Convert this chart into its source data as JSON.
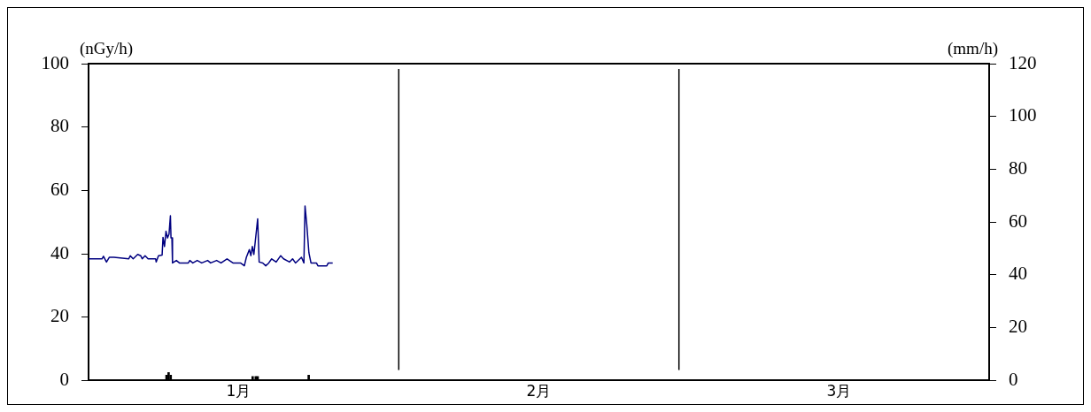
{
  "chart_data": {
    "type": "line",
    "xlim": [
      "--01-01",
      "--04-01"
    ],
    "xticks": [
      {
        "value": "--01-16",
        "label": "1月"
      },
      {
        "value": "--02-15",
        "label": "2月"
      },
      {
        "value": "--03-17",
        "label": "3月"
      }
    ],
    "ylim": [
      0,
      100
    ],
    "yticks": [
      0,
      20,
      40,
      60,
      80,
      100
    ],
    "y2lim": [
      0,
      120
    ],
    "y2ticks": [
      0,
      20,
      40,
      60,
      80,
      100,
      120
    ],
    "ylabel": "(nGy/h)",
    "y2label": "(mm/h)",
    "grid": false,
    "legend": false,
    "marker": "none",
    "line_style": "solid",
    "ref_lines": [
      {
        "axis": "x",
        "value": "--02-01",
        "color": "#000000"
      },
      {
        "axis": "x",
        "value": "--03-01",
        "color": "#000000"
      }
    ],
    "series": [
      {
        "color": "#000080",
        "x": [
          "--01-01T00:00",
          "--01-02T08:10",
          "--01-02T11:45",
          "--01-02T19:00",
          "--01-03T02:00",
          "--01-03T12:45",
          "--01-05T00:30",
          "--01-05T04:00",
          "--01-05T11:00",
          "--01-05T21:50",
          "--01-06T05:00",
          "--01-06T08:40",
          "--01-06T15:35",
          "--01-06T22:50",
          "--01-07T16:50",
          "--01-07T18:15",
          "--01-07T23:45",
          "--01-08T08:25",
          "--01-08T10:35",
          "--01-08T14:10",
          "--01-08T17:45",
          "--01-08T21:20",
          "--01-09T01:00",
          "--01-09T04:20",
          "--01-09T05:45",
          "--01-09T07:55",
          "--01-09T09:20",
          "--01-09T18:40",
          "--01-10T01:55",
          "--01-10T23:15",
          "--01-11T02:50",
          "--01-11T10:05",
          "--01-11T20:40",
          "--01-12T07:25",
          "--01-12T21:35",
          "--01-13T04:50",
          "--01-13T19:10",
          "--01-14T05:45",
          "--01-14T20:10",
          "--01-15T10:20",
          "--01-16T04:20",
          "--01-16T13:40",
          "--01-16T18:30",
          "--01-17T01:40",
          "--01-17T05:15",
          "--01-17T08:50",
          "--01-17T12:30",
          "--01-17T16:05",
          "--01-17T21:35",
          "--01-18T01:10",
          "--01-18T09:50",
          "--01-18T17:00",
          "--01-19T00:15",
          "--01-19T07:10",
          "--01-19T18:00",
          "--01-20T04:50",
          "--01-20T11:45",
          "--01-21T02:10",
          "--01-21T09:20",
          "--01-21T16:20",
          "--01-22T06:40",
          "--01-22T12:30",
          "--01-22T15:10",
          "--01-22T19:25",
          "--01-23T00:30",
          "--01-23T05:30",
          "--01-23T18:30",
          "--01-23T22:05",
          "--01-24T19:25",
          "--01-24T23:00",
          "--01-25T09:35"
        ],
        "values": [
          38.4,
          38.4,
          39.2,
          37.4,
          38.9,
          38.9,
          38.4,
          39.4,
          38.4,
          39.8,
          39.4,
          38.4,
          39.4,
          38.4,
          38.4,
          37.4,
          39.4,
          39.6,
          45.2,
          42.3,
          47.1,
          45,
          46.2,
          52,
          45,
          45,
          37.1,
          37.9,
          37.1,
          37.1,
          37.9,
          37.1,
          37.9,
          37.1,
          37.9,
          37.1,
          37.9,
          37.1,
          38.4,
          37.1,
          37.1,
          36.2,
          38.9,
          41.3,
          39.4,
          42.3,
          39.8,
          44.2,
          51,
          37.4,
          37.1,
          36.2,
          37.1,
          38.4,
          37.4,
          39.4,
          38.4,
          37.4,
          38.4,
          37.1,
          38.9,
          37.1,
          55.1,
          49.1,
          40.3,
          37.1,
          37.1,
          36.2,
          36.2,
          37.1,
          37.1
        ]
      },
      {
        "type": "bar",
        "axis": "y2",
        "color": "#000000",
        "x": [
          "--01-08T19:00",
          "--01-09T00:00",
          "--01-09T05:00",
          "--01-17T09:35",
          "--01-17T17:00",
          "--01-17T21:35",
          "--01-23T00:00"
        ],
        "values": [
          2,
          3,
          2,
          1.5,
          1.5,
          1.5,
          2
        ]
      }
    ]
  }
}
